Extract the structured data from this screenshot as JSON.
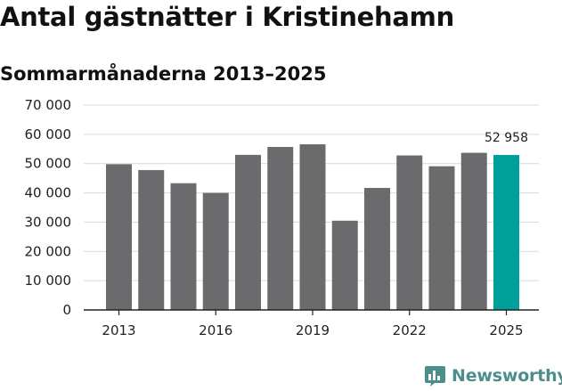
{
  "chart_data": {
    "type": "bar",
    "title": "Antal gästnätter i Kristinehamn",
    "subtitle": "Sommarmånaderna 2013–2025",
    "categories": [
      "2013",
      "2014",
      "2015",
      "2016",
      "2017",
      "2018",
      "2019",
      "2020",
      "2021",
      "2022",
      "2023",
      "2024",
      "2025"
    ],
    "values": [
      49800,
      47800,
      43300,
      40000,
      53000,
      55700,
      56600,
      30500,
      41700,
      52800,
      49100,
      53700,
      52958
    ],
    "x_tick_labels": [
      "2013",
      "2016",
      "2019",
      "2022",
      "2025"
    ],
    "y_ticks": [
      0,
      10000,
      20000,
      30000,
      40000,
      50000,
      60000,
      70000
    ],
    "y_tick_labels": [
      "0",
      "10 000",
      "20 000",
      "30 000",
      "40 000",
      "50 000",
      "60 000",
      "70 000"
    ],
    "ylim": [
      0,
      70000
    ],
    "grid": true,
    "highlight_index": 12,
    "data_labels": [
      {
        "index": 12,
        "text": "52 958"
      }
    ],
    "colors": {
      "bar": "#6b6b6e",
      "highlight": "#00a09a",
      "grid": "#d9d9d9",
      "axis": "#222222"
    }
  },
  "brand": {
    "name": "Newsworthy",
    "icon": "bar-chart-icon",
    "color": "#4a8f8c"
  }
}
